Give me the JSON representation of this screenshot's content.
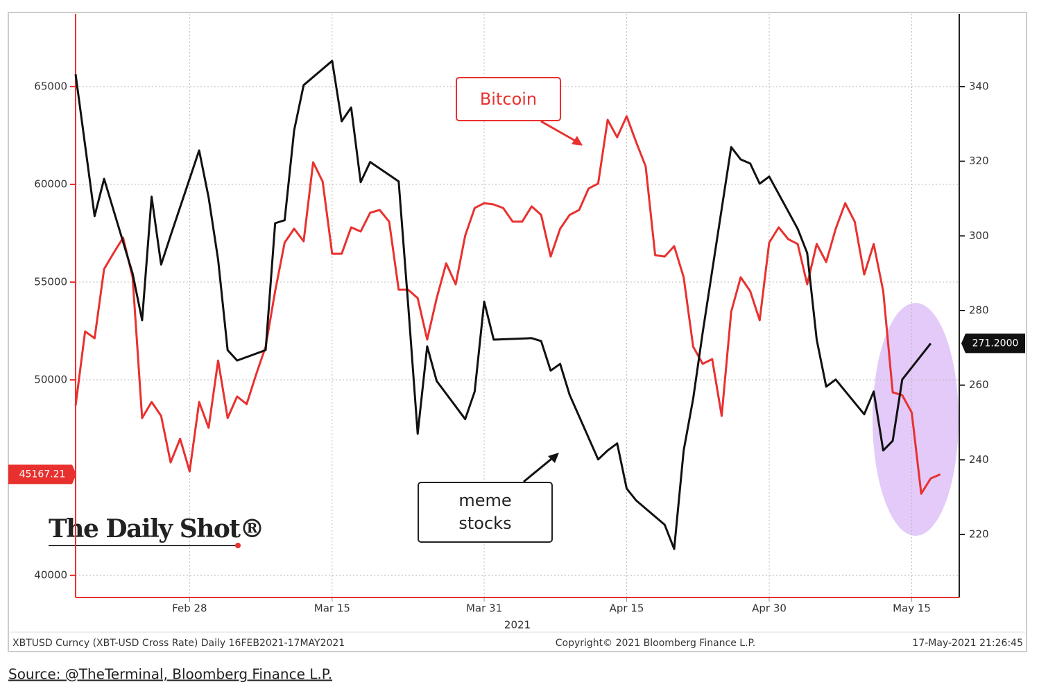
{
  "chart_data": {
    "type": "line",
    "x_label": "2021",
    "xlim": [
      "2021-02-16",
      "2021-05-20"
    ],
    "xticks": [
      {
        "value": "2021-02-28",
        "label": "Feb 28"
      },
      {
        "value": "2021-03-15",
        "label": "Mar 15"
      },
      {
        "value": "2021-03-31",
        "label": "Mar 31"
      },
      {
        "value": "2021-04-15",
        "label": "Apr 15"
      },
      {
        "value": "2021-04-30",
        "label": "Apr 30"
      },
      {
        "value": "2021-05-15",
        "label": "May 15"
      }
    ],
    "ylim": [
      38870,
      68720
    ],
    "yticks": [
      40000,
      50000,
      55000,
      60000,
      65000
    ],
    "y2lim": [
      203.1,
      359.5
    ],
    "y2ticks": [
      220,
      240,
      260,
      280,
      300,
      320,
      340
    ],
    "grid": true,
    "series": [
      {
        "name": "Bitcoin",
        "color": "#e8312f",
        "last_label": "45167.21",
        "x": [
          "2021-02-16",
          "2021-02-17",
          "2021-02-18",
          "2021-02-19",
          "2021-02-20",
          "2021-02-21",
          "2021-02-22",
          "2021-02-23",
          "2021-02-24",
          "2021-02-25",
          "2021-02-26",
          "2021-02-27",
          "2021-02-28",
          "2021-03-01",
          "2021-03-02",
          "2021-03-03",
          "2021-03-04",
          "2021-03-05",
          "2021-03-06",
          "2021-03-07",
          "2021-03-08",
          "2021-03-09",
          "2021-03-10",
          "2021-03-11",
          "2021-03-12",
          "2021-03-13",
          "2021-03-14",
          "2021-03-15",
          "2021-03-16",
          "2021-03-17",
          "2021-03-18",
          "2021-03-19",
          "2021-03-20",
          "2021-03-21",
          "2021-03-22",
          "2021-03-23",
          "2021-03-24",
          "2021-03-25",
          "2021-03-26",
          "2021-03-27",
          "2021-03-28",
          "2021-03-29",
          "2021-03-30",
          "2021-03-31",
          "2021-04-01",
          "2021-04-02",
          "2021-04-03",
          "2021-04-04",
          "2021-04-05",
          "2021-04-06",
          "2021-04-07",
          "2021-04-08",
          "2021-04-09",
          "2021-04-10",
          "2021-04-11",
          "2021-04-12",
          "2021-04-13",
          "2021-04-14",
          "2021-04-15",
          "2021-04-16",
          "2021-04-17",
          "2021-04-18",
          "2021-04-19",
          "2021-04-20",
          "2021-04-21",
          "2021-04-22",
          "2021-04-23",
          "2021-04-24",
          "2021-04-25",
          "2021-04-26",
          "2021-04-27",
          "2021-04-28",
          "2021-04-29",
          "2021-04-30",
          "2021-05-01",
          "2021-05-02",
          "2021-05-03",
          "2021-05-04",
          "2021-05-05",
          "2021-05-06",
          "2021-05-07",
          "2021-05-08",
          "2021-05-09",
          "2021-05-10",
          "2021-05-11",
          "2021-05-12",
          "2021-05-13",
          "2021-05-14",
          "2021-05-15",
          "2021-05-16",
          "2021-05-17",
          "2021-05-18"
        ],
        "values": [
          48690,
          52480,
          52130,
          55670,
          56490,
          57270,
          55250,
          48050,
          48870,
          48160,
          45780,
          46990,
          45320,
          48870,
          47550,
          50990,
          48050,
          49150,
          48760,
          50280,
          51700,
          54540,
          57020,
          57730,
          57090,
          61130,
          60140,
          56450,
          56450,
          57800,
          57590,
          58550,
          58690,
          58090,
          54610,
          54610,
          54180,
          52060,
          54180,
          55960,
          54890,
          57380,
          58790,
          59040,
          58970,
          58790,
          58090,
          58090,
          58870,
          58440,
          56310,
          57730,
          58440,
          58690,
          59790,
          60040,
          63300,
          62410,
          63480,
          62160,
          60920,
          56380,
          56310,
          56840,
          55250,
          51700,
          50820,
          51060,
          48160,
          53480,
          55250,
          54540,
          53050,
          57020,
          57800,
          57200,
          56950,
          54890,
          56950,
          56030,
          57730,
          59040,
          58090,
          55390,
          56950,
          54540,
          49360,
          49220,
          48330,
          44180,
          44960,
          45167.21
        ]
      },
      {
        "name": "meme stocks",
        "color": "#111111",
        "axis": "y2",
        "last_label": "271.2000",
        "x": [
          "2021-02-16",
          "2021-02-18",
          "2021-02-19",
          "2021-02-22",
          "2021-02-23",
          "2021-02-24",
          "2021-02-25",
          "2021-02-26",
          "2021-03-01",
          "2021-03-02",
          "2021-03-03",
          "2021-03-04",
          "2021-03-05",
          "2021-03-08",
          "2021-03-09",
          "2021-03-10",
          "2021-03-11",
          "2021-03-12",
          "2021-03-15",
          "2021-03-16",
          "2021-03-17",
          "2021-03-18",
          "2021-03-19",
          "2021-03-22",
          "2021-03-23",
          "2021-03-24",
          "2021-03-25",
          "2021-03-26",
          "2021-03-29",
          "2021-03-30",
          "2021-03-31",
          "2021-04-01",
          "2021-04-05",
          "2021-04-06",
          "2021-04-07",
          "2021-04-08",
          "2021-04-09",
          "2021-04-12",
          "2021-04-13",
          "2021-04-14",
          "2021-04-15",
          "2021-04-16",
          "2021-04-19",
          "2021-04-20",
          "2021-04-21",
          "2021-04-22",
          "2021-04-23",
          "2021-04-26",
          "2021-04-27",
          "2021-04-28",
          "2021-04-29",
          "2021-04-30",
          "2021-05-03",
          "2021-05-04",
          "2021-05-05",
          "2021-05-06",
          "2021-05-07",
          "2021-05-10",
          "2021-05-11",
          "2021-05-12",
          "2021-05-13",
          "2021-05-14",
          "2021-05-17"
        ],
        "values": [
          343.3,
          305.3,
          315.3,
          289.9,
          277.4,
          310.5,
          292.3,
          300.1,
          322.9,
          310.3,
          293.6,
          269.4,
          266.6,
          269.4,
          303.4,
          304.2,
          328.3,
          340.4,
          346.9,
          330.7,
          334.4,
          314.4,
          319.8,
          314.6,
          281.5,
          247.0,
          270.4,
          261.1,
          250.9,
          258.3,
          282.4,
          272.2,
          272.6,
          271.8,
          263.9,
          265.7,
          257.4,
          240.1,
          242.5,
          244.4,
          232.3,
          229.1,
          222.6,
          216.1,
          242.5,
          256.4,
          274.1,
          323.8,
          320.5,
          319.4,
          314.0,
          315.9,
          301.9,
          295.4,
          272.2,
          259.6,
          261.5,
          252.2,
          258.3,
          242.5,
          245.1,
          261.5,
          271.2
        ]
      }
    ],
    "footer_left": "XBTUSD Curncy (XBT-USD Cross Rate)  Daily 16FEB2021-17MAY2021",
    "footer_center": "Copyright© 2021 Bloomberg Finance L.P.",
    "footer_right": "17-May-2021 21:26:45",
    "logo": "The Daily Shot®",
    "source": "Source: @TheTerminal, Bloomberg Finance L.P."
  }
}
